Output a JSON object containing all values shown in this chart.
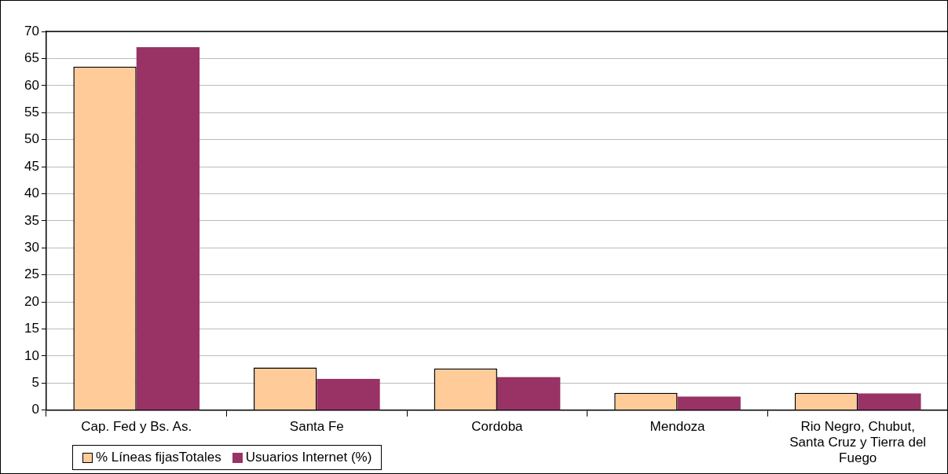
{
  "chart_data": {
    "type": "bar",
    "categories": [
      "Cap. Fed y Bs. As.",
      "Santa Fe",
      "Cordoba",
      "Mendoza",
      "Rio Negro, Chubut, Santa Cruz y Tierra del Fuego"
    ],
    "series": [
      {
        "name": "% Líneas fijasTotales",
        "color": "#ffcc99",
        "values": [
          63.5,
          7.9,
          7.7,
          3.2,
          3.2
        ]
      },
      {
        "name": "Usuarios Internet (%)",
        "color": "#993366",
        "values": [
          67.1,
          5.8,
          6.1,
          2.5,
          3.1
        ]
      }
    ],
    "ylim": [
      0,
      70
    ],
    "yticks": [
      0,
      5,
      10,
      15,
      20,
      25,
      30,
      35,
      40,
      45,
      50,
      55,
      60,
      65,
      70
    ],
    "grid": "y",
    "legend": "bottom left"
  }
}
